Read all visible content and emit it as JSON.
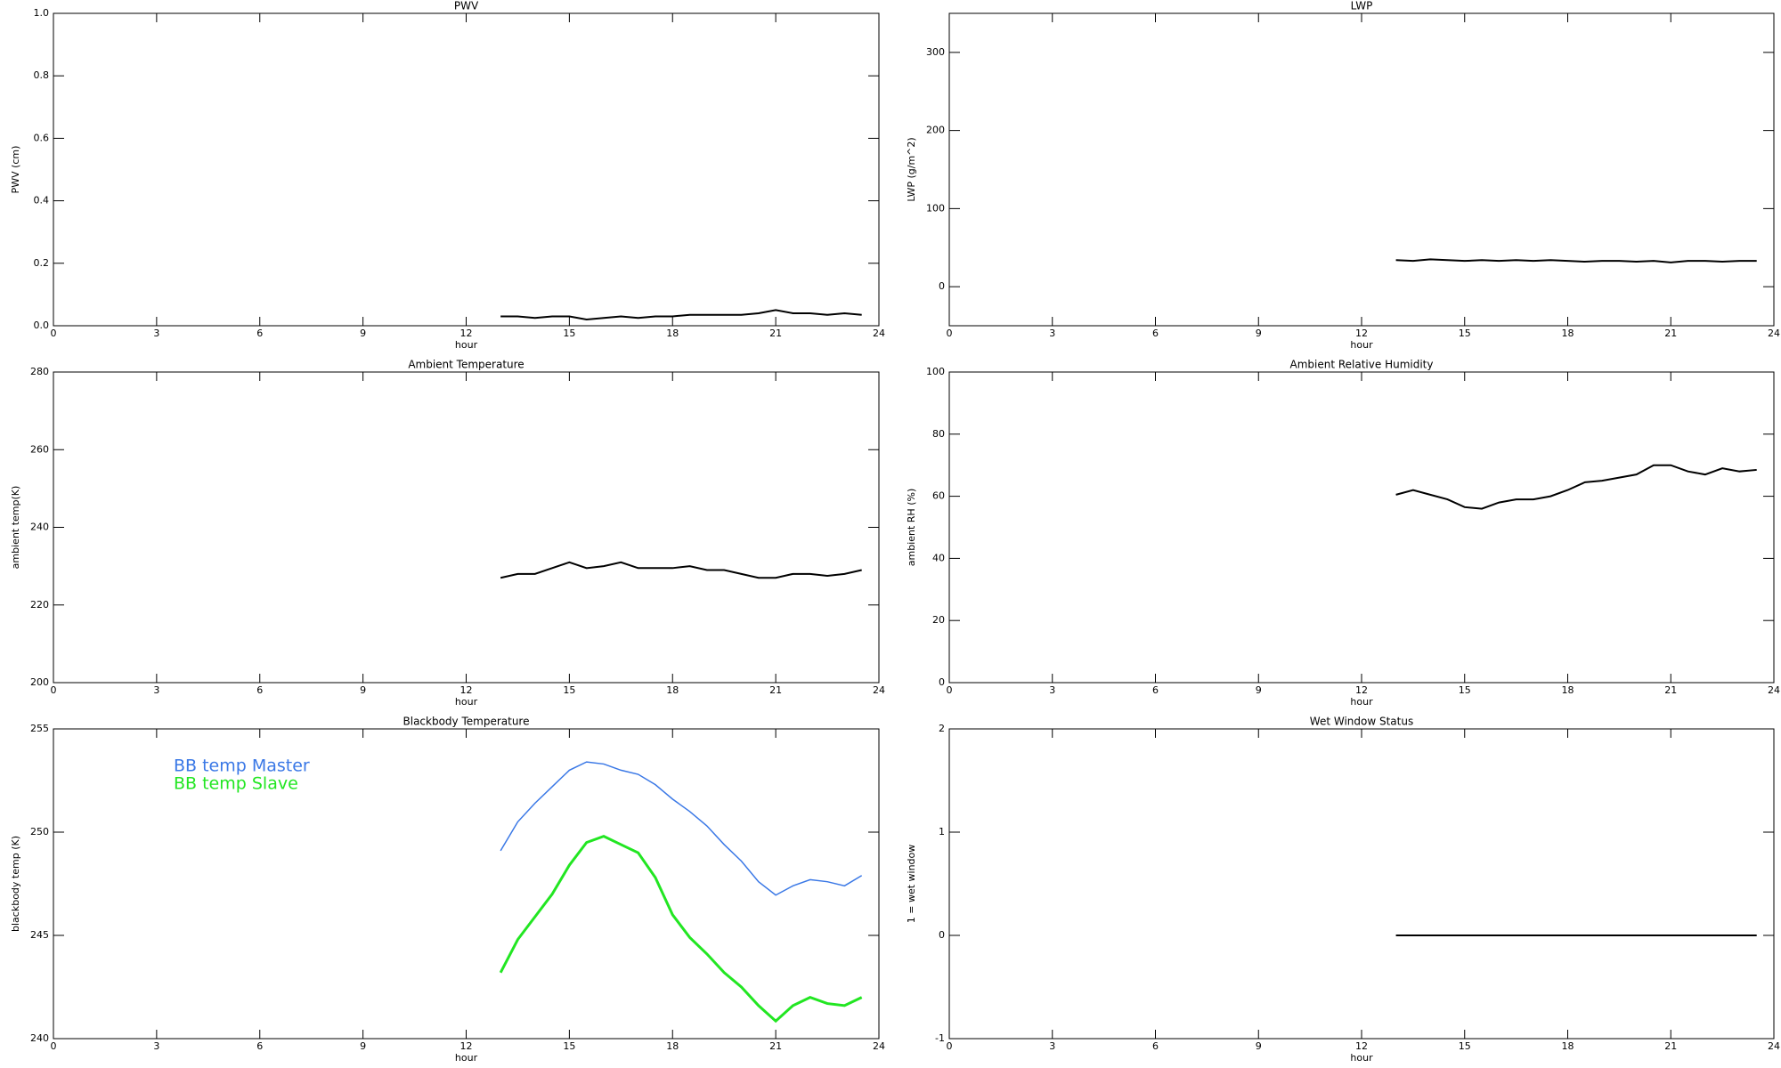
{
  "chart_data": [
    {
      "type": "line",
      "title": "PWV",
      "xlabel": "hour",
      "ylabel": "PWV (cm)",
      "x": [
        13,
        13.5,
        14,
        14.5,
        15,
        15.5,
        16,
        16.5,
        17,
        17.5,
        18,
        18.5,
        19,
        19.5,
        20,
        20.5,
        21,
        21.5,
        22,
        22.5,
        23,
        23.5
      ],
      "values": [
        0.03,
        0.03,
        0.025,
        0.03,
        0.03,
        0.02,
        0.025,
        0.03,
        0.025,
        0.03,
        0.03,
        0.035,
        0.035,
        0.035,
        0.035,
        0.04,
        0.05,
        0.04,
        0.04,
        0.035,
        0.04,
        0.035
      ],
      "color": "#000000",
      "xlim": [
        0,
        24
      ],
      "xticks": [
        0,
        3,
        6,
        9,
        12,
        15,
        18,
        21,
        24
      ],
      "ylim": [
        0,
        1
      ],
      "yticks": [
        {
          "value": 0,
          "label": "0.0"
        },
        0.2,
        0.4,
        0.6,
        0.8,
        {
          "value": 1,
          "label": "1.0"
        }
      ]
    },
    {
      "type": "line",
      "title": "LWP",
      "xlabel": "hour",
      "ylabel": "LWP (g/m^2)",
      "x": [
        13,
        13.5,
        14,
        14.5,
        15,
        15.5,
        16,
        16.5,
        17,
        17.5,
        18,
        18.5,
        19,
        19.5,
        20,
        20.5,
        21,
        21.5,
        22,
        22.5,
        23,
        23.5
      ],
      "values": [
        34,
        33,
        35,
        34,
        33,
        34,
        33,
        34,
        33,
        34,
        33,
        32,
        33,
        33,
        32,
        33,
        31,
        33,
        33,
        32,
        33,
        33
      ],
      "color": "#000000",
      "xlim": [
        0,
        24
      ],
      "xticks": [
        0,
        3,
        6,
        9,
        12,
        15,
        18,
        21,
        24
      ],
      "ylim": [
        -50,
        350
      ],
      "yticks": [
        0,
        100,
        200,
        300
      ]
    },
    {
      "type": "line",
      "title": "Ambient Temperature",
      "xlabel": "hour",
      "ylabel": "ambient temp(K)",
      "x": [
        13,
        13.5,
        14,
        14.5,
        15,
        15.5,
        16,
        16.5,
        17,
        17.5,
        18,
        18.5,
        19,
        19.5,
        20,
        20.5,
        21,
        21.5,
        22,
        22.5,
        23,
        23.5
      ],
      "values": [
        227,
        228,
        228,
        229.5,
        231,
        229.5,
        230,
        231,
        229.5,
        229.5,
        229.5,
        230,
        229,
        229,
        228,
        227,
        227,
        228,
        228,
        227.5,
        228,
        229
      ],
      "color": "#000000",
      "xlim": [
        0,
        24
      ],
      "xticks": [
        0,
        3,
        6,
        9,
        12,
        15,
        18,
        21,
        24
      ],
      "ylim": [
        200,
        280
      ],
      "yticks": [
        200,
        220,
        240,
        260,
        280
      ]
    },
    {
      "type": "line",
      "title": "Ambient Relative Humidity",
      "xlabel": "hour",
      "ylabel": "ambient RH (%)",
      "x": [
        13,
        13.5,
        14,
        14.5,
        15,
        15.5,
        16,
        16.5,
        17,
        17.5,
        18,
        18.5,
        19,
        19.5,
        20,
        20.5,
        21,
        21.5,
        22,
        22.5,
        23,
        23.5
      ],
      "values": [
        60.5,
        62,
        60.5,
        59,
        56.5,
        56,
        58,
        59,
        59,
        60,
        62,
        64.5,
        65,
        66,
        67,
        70,
        70,
        68,
        67,
        69,
        68,
        68.5
      ],
      "color": "#000000",
      "xlim": [
        0,
        24
      ],
      "xticks": [
        0,
        3,
        6,
        9,
        12,
        15,
        18,
        21,
        24
      ],
      "ylim": [
        0,
        100
      ],
      "yticks": [
        0,
        20,
        40,
        60,
        80,
        100
      ]
    },
    {
      "type": "line",
      "title": "Blackbody Temperature",
      "xlabel": "hour",
      "ylabel": "blackbody temp (K)",
      "x": [
        13,
        13.5,
        14,
        14.5,
        15,
        15.5,
        16,
        16.5,
        17,
        17.5,
        18,
        18.5,
        19,
        19.5,
        20,
        20.5,
        21,
        21.5,
        22,
        22.5,
        23,
        23.5
      ],
      "series": [
        {
          "name": "BB temp Master",
          "color": "#3a78e6",
          "values": [
            249.1,
            250.5,
            251.4,
            252.2,
            253.0,
            253.4,
            253.3,
            253.0,
            252.8,
            252.3,
            251.6,
            251.0,
            250.3,
            249.4,
            248.6,
            247.6,
            246.95,
            247.4,
            247.7,
            247.6,
            247.4,
            247.9
          ]
        },
        {
          "name": "BB temp Slave",
          "color": "#22e622",
          "values": [
            243.2,
            244.8,
            245.9,
            247.0,
            248.4,
            249.5,
            249.8,
            249.4,
            249.0,
            247.8,
            246.0,
            244.9,
            244.1,
            243.2,
            242.5,
            241.6,
            240.85,
            241.6,
            242.0,
            241.7,
            241.6,
            242.0
          ]
        }
      ],
      "legend": "upper left",
      "xlim": [
        0,
        24
      ],
      "xticks": [
        0,
        3,
        6,
        9,
        12,
        15,
        18,
        21,
        24
      ],
      "ylim": [
        240,
        255
      ],
      "yticks": [
        240,
        245,
        250,
        255
      ]
    },
    {
      "type": "line",
      "title": "Wet Window Status",
      "xlabel": "hour",
      "ylabel": "1 = wet window",
      "x": [
        13,
        13.5,
        14,
        14.5,
        15,
        15.5,
        16,
        16.5,
        17,
        17.5,
        18,
        18.5,
        19,
        19.5,
        20,
        20.5,
        21,
        21.5,
        22,
        22.5,
        23,
        23.5
      ],
      "values": [
        0,
        0,
        0,
        0,
        0,
        0,
        0,
        0,
        0,
        0,
        0,
        0,
        0,
        0,
        0,
        0,
        0,
        0,
        0,
        0,
        0,
        0
      ],
      "color": "#000000",
      "xlim": [
        0,
        24
      ],
      "xticks": [
        0,
        3,
        6,
        9,
        12,
        15,
        18,
        21,
        24
      ],
      "ylim": [
        -1,
        2
      ],
      "yticks": [
        -1,
        0,
        1,
        2
      ]
    }
  ]
}
